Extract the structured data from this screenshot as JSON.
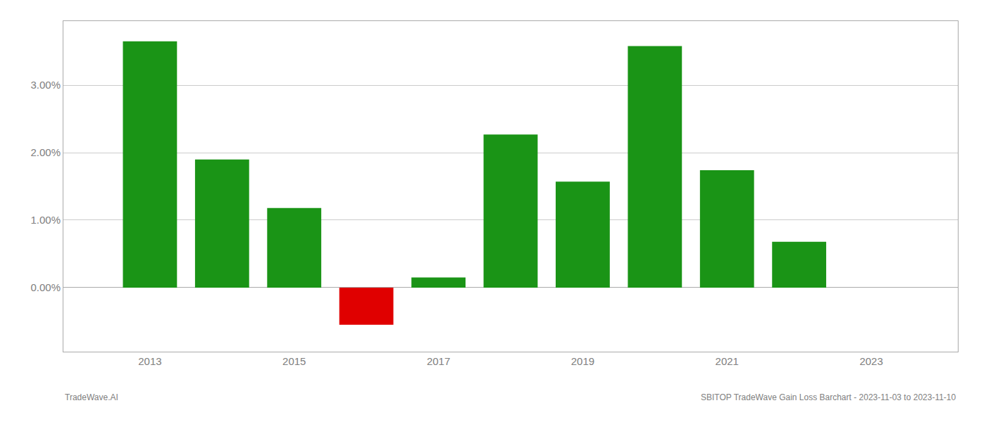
{
  "chart_data": {
    "type": "bar",
    "x": [
      2013,
      2014,
      2015,
      2016,
      2017,
      2018,
      2019,
      2020,
      2021,
      2022
    ],
    "values": [
      0.0365,
      0.019,
      0.0118,
      -0.0055,
      0.0015,
      0.0227,
      0.0157,
      0.0358,
      0.0174,
      0.0068
    ],
    "colors": [
      "#1a9416",
      "#1a9416",
      "#1a9416",
      "#e00000",
      "#1a9416",
      "#1a9416",
      "#1a9416",
      "#1a9416",
      "#1a9416",
      "#1a9416"
    ],
    "xlim": [
      2011.8,
      2024.2
    ],
    "xticks": [
      2013,
      2015,
      2017,
      2019,
      2021,
      2023
    ],
    "ylim": [
      -0.0095,
      0.0395
    ],
    "yticks": [
      {
        "value": 0.0,
        "label": "0.00%"
      },
      {
        "value": 0.01,
        "label": "1.00%"
      },
      {
        "value": 0.02,
        "label": "2.00%"
      },
      {
        "value": 0.03,
        "label": "3.00%"
      }
    ],
    "grid": true,
    "annotations": [
      "TradeWave.AI",
      "SBITOP TradeWave Gain Loss Barchart - 2023-11-03 to 2023-11-10"
    ]
  }
}
